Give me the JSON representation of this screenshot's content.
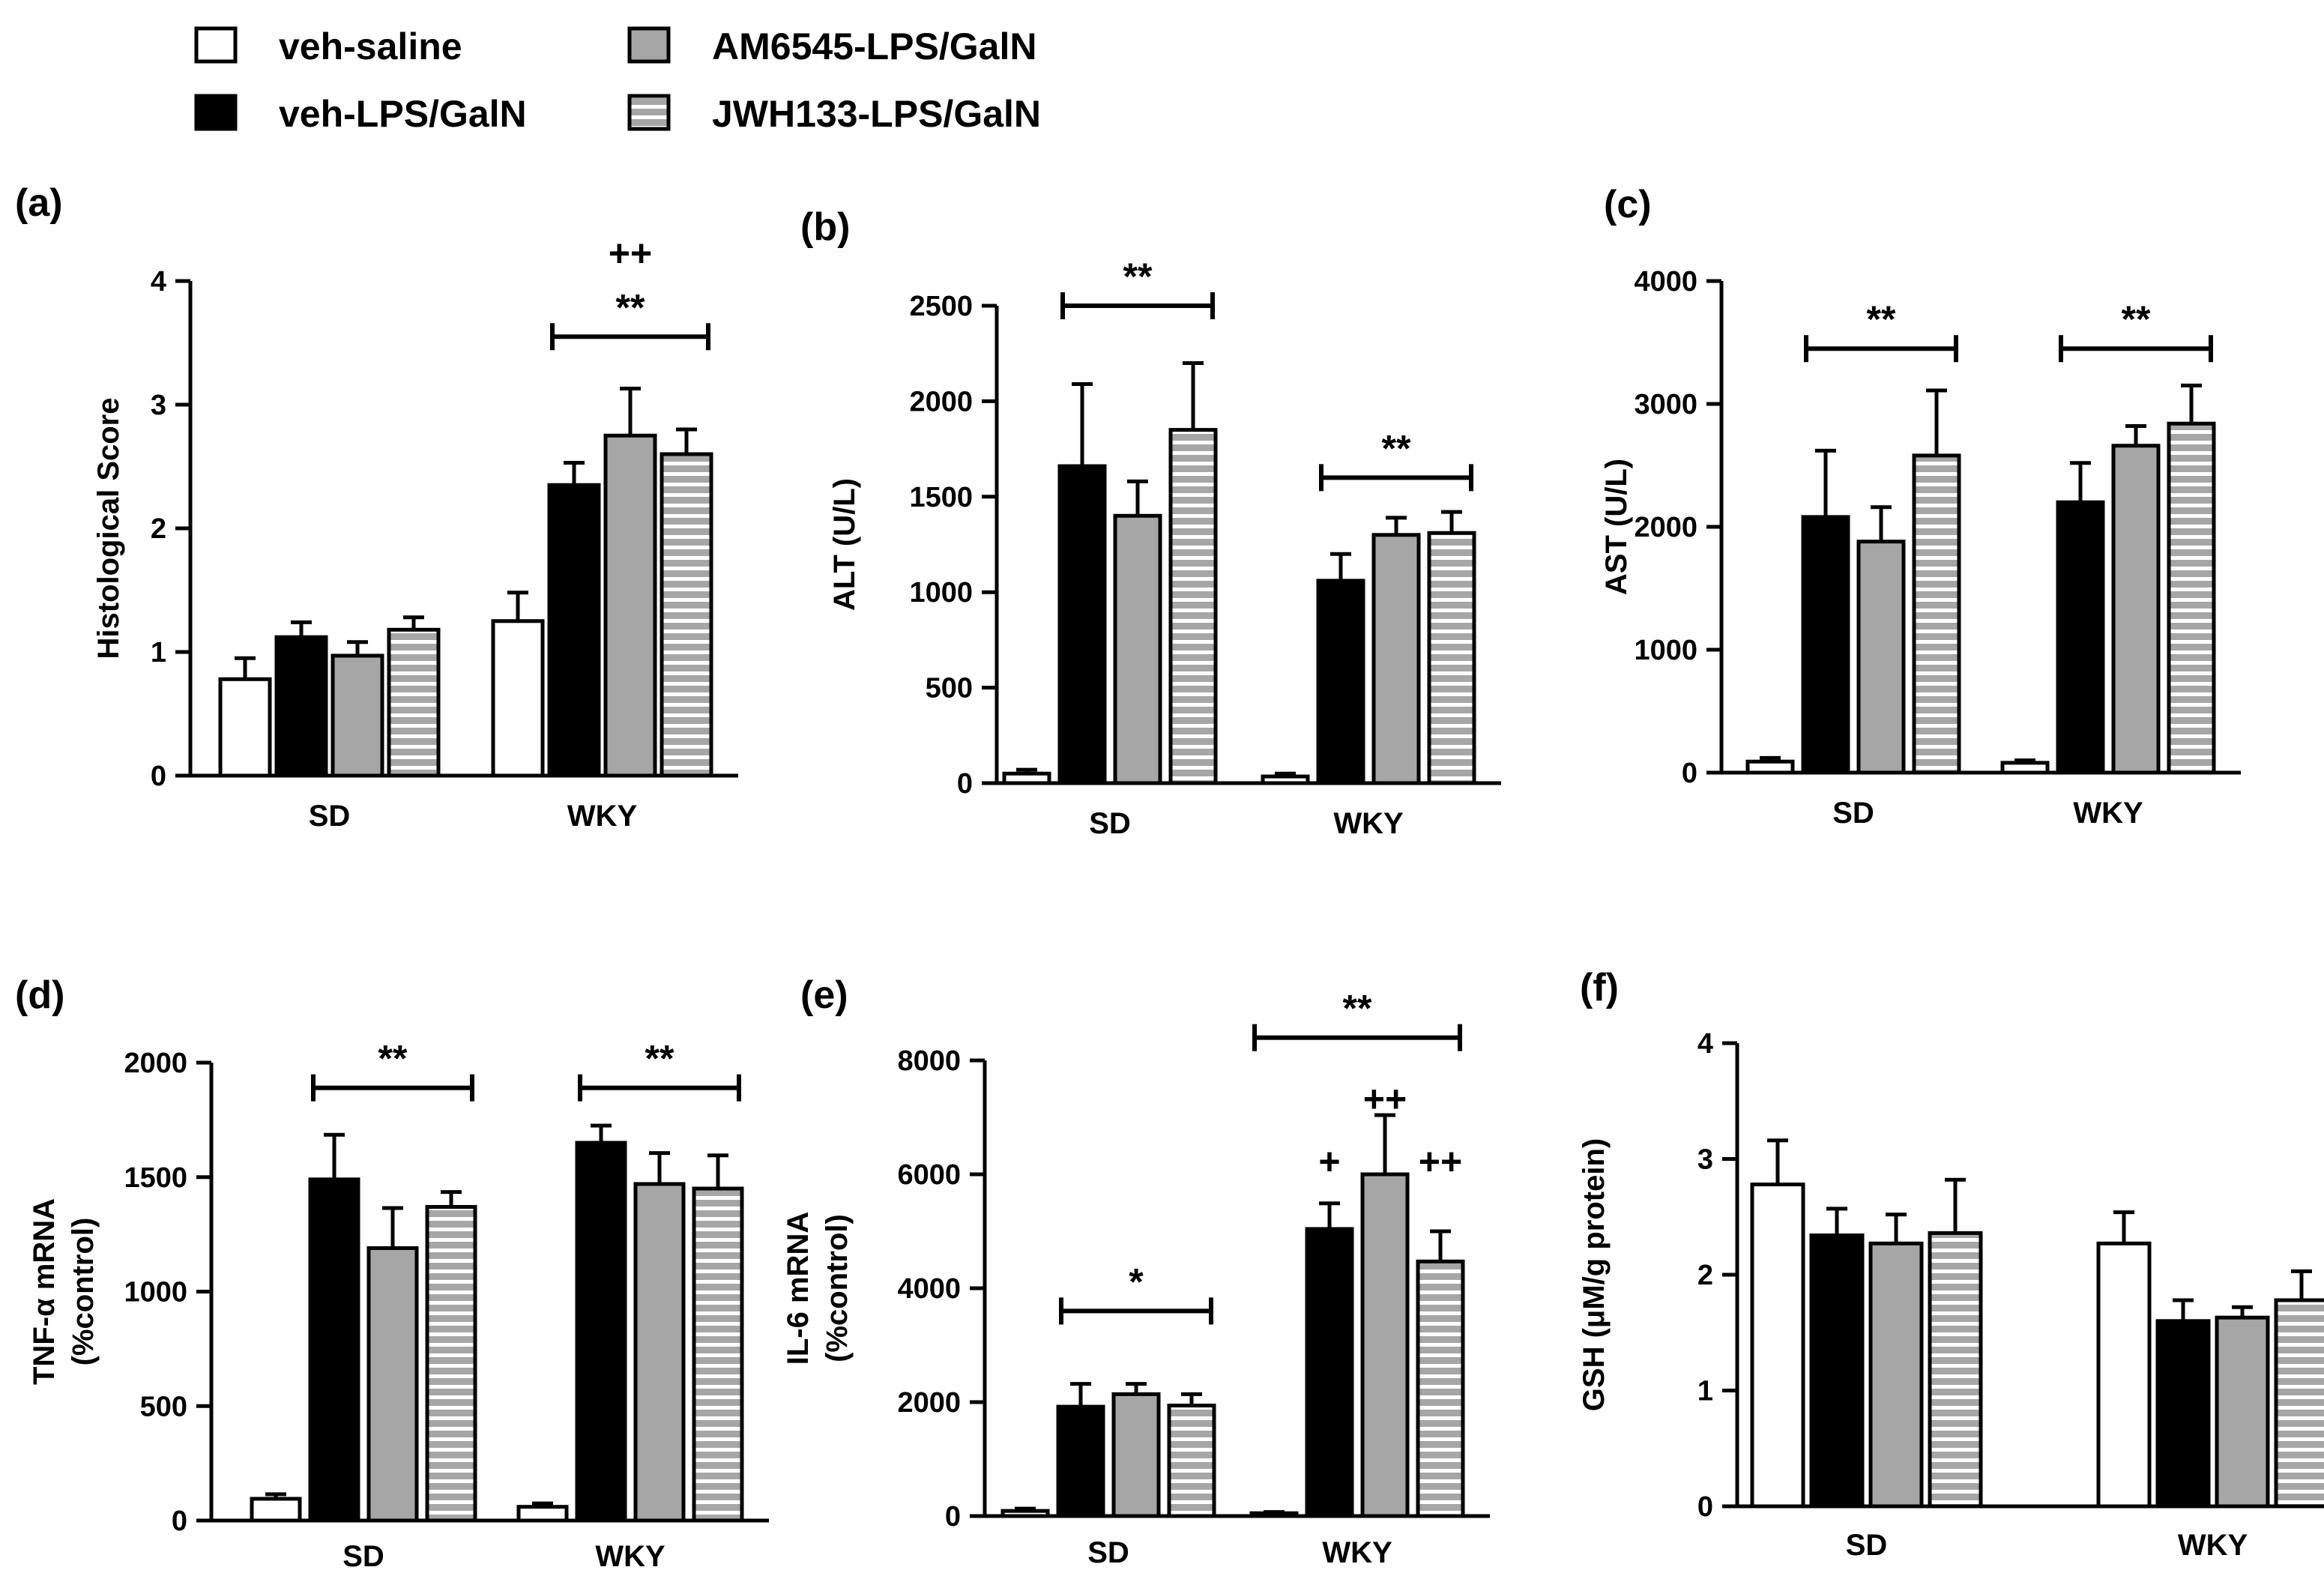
{
  "legend": [
    {
      "name": "veh-saline",
      "style": "white"
    },
    {
      "name": "veh-LPS/GalN",
      "style": "black"
    },
    {
      "name": "AM6545-LPS/GalN",
      "style": "gray"
    },
    {
      "name": "JWH133-LPS/GalN",
      "style": "stripe"
    }
  ],
  "colors": {
    "white": "#ffffff",
    "black": "#000000",
    "gray": "#a6a6a6",
    "stripe_bg": "#a6a6a6",
    "stripe_line": "#ffffff",
    "ink": "#000000"
  },
  "chart_data": [
    {
      "type": "bar",
      "panel_label": "(a)",
      "ylabel": "Histological Score",
      "ylim": [
        0,
        4
      ],
      "yticks": [
        "0",
        "1",
        "2",
        "3",
        "4"
      ],
      "categories": [
        "SD",
        "WKY"
      ],
      "series": [
        {
          "name": "veh-saline",
          "values": [
            0.78,
            1.25
          ],
          "errors": [
            0.17,
            0.23
          ]
        },
        {
          "name": "veh-LPS/GalN",
          "values": [
            1.12,
            2.35
          ],
          "errors": [
            0.12,
            0.18
          ]
        },
        {
          "name": "AM6545-LPS/GalN",
          "values": [
            0.97,
            2.75
          ],
          "errors": [
            0.11,
            0.38
          ]
        },
        {
          "name": "JWH133-LPS/GalN",
          "values": [
            1.18,
            2.6
          ],
          "errors": [
            0.1,
            0.2
          ]
        }
      ],
      "annotations": [
        {
          "group": 1,
          "from": 1,
          "to": 3,
          "label": "**",
          "level": 3.55
        },
        {
          "group": 1,
          "label": "++",
          "level": 4.12,
          "plain": true
        }
      ]
    },
    {
      "type": "bar",
      "panel_label": "(b)",
      "ylabel": "ALT (U/L)",
      "ylim": [
        0,
        2500
      ],
      "yticks": [
        "0",
        "500",
        "1000",
        "1500",
        "2000",
        "2500"
      ],
      "categories": [
        "SD",
        "WKY"
      ],
      "series": [
        {
          "name": "veh-saline",
          "values": [
            50,
            35
          ],
          "errors": [
            20,
            15
          ]
        },
        {
          "name": "veh-LPS/GalN",
          "values": [
            1660,
            1060
          ],
          "errors": [
            430,
            140
          ]
        },
        {
          "name": "AM6545-LPS/GalN",
          "values": [
            1400,
            1300
          ],
          "errors": [
            180,
            90
          ]
        },
        {
          "name": "JWH133-LPS/GalN",
          "values": [
            1850,
            1310
          ],
          "errors": [
            350,
            110
          ]
        }
      ],
      "annotations": [
        {
          "group": 0,
          "from": 1,
          "to": 3,
          "label": "**",
          "level": 2500
        },
        {
          "group": 1,
          "from": 1,
          "to": 3,
          "label": "**",
          "level": 1600
        }
      ]
    },
    {
      "type": "bar",
      "panel_label": "(c)",
      "ylabel": "AST (U/L)",
      "ylim": [
        0,
        4000
      ],
      "yticks": [
        "0",
        "1000",
        "2000",
        "3000",
        "4000"
      ],
      "categories": [
        "SD",
        "WKY"
      ],
      "series": [
        {
          "name": "veh-saline",
          "values": [
            90,
            80
          ],
          "errors": [
            30,
            20
          ]
        },
        {
          "name": "veh-LPS/GalN",
          "values": [
            2080,
            2200
          ],
          "errors": [
            540,
            320
          ]
        },
        {
          "name": "AM6545-LPS/GalN",
          "values": [
            1880,
            2660
          ],
          "errors": [
            280,
            160
          ]
        },
        {
          "name": "JWH133-LPS/GalN",
          "values": [
            2580,
            2840
          ],
          "errors": [
            530,
            310
          ]
        }
      ],
      "annotations": [
        {
          "group": 0,
          "from": 1,
          "to": 3,
          "label": "**",
          "level": 3450
        },
        {
          "group": 1,
          "from": 1,
          "to": 3,
          "label": "**",
          "level": 3450
        }
      ]
    },
    {
      "type": "bar",
      "panel_label": "(d)",
      "ylabel": "TNF-α mRNA",
      "ylabel2": "(%control)",
      "ylim": [
        0,
        2000
      ],
      "yticks": [
        "0",
        "500",
        "1000",
        "1500",
        "2000"
      ],
      "categories": [
        "SD",
        "WKY"
      ],
      "series": [
        {
          "name": "veh-saline",
          "values": [
            95,
            60
          ],
          "errors": [
            20,
            15
          ]
        },
        {
          "name": "veh-LPS/GalN",
          "values": [
            1490,
            1650
          ],
          "errors": [
            195,
            75
          ]
        },
        {
          "name": "AM6545-LPS/GalN",
          "values": [
            1190,
            1470
          ],
          "errors": [
            175,
            135
          ]
        },
        {
          "name": "JWH133-LPS/GalN",
          "values": [
            1370,
            1450
          ],
          "errors": [
            65,
            145
          ]
        }
      ],
      "annotations": [
        {
          "group": 0,
          "from": 1,
          "to": 3,
          "label": "**",
          "level": 1890
        },
        {
          "group": 1,
          "from": 1,
          "to": 3,
          "label": "**",
          "level": 1890
        }
      ]
    },
    {
      "type": "bar",
      "panel_label": "(e)",
      "ylabel": "IL-6 mRNA",
      "ylabel2": "(%control)",
      "ylim": [
        0,
        8000
      ],
      "yticks": [
        "0",
        "2000",
        "4000",
        "6000",
        "8000"
      ],
      "categories": [
        "SD",
        "WKY"
      ],
      "series": [
        {
          "name": "veh-saline",
          "values": [
            90,
            50
          ],
          "errors": [
            40,
            20
          ]
        },
        {
          "name": "veh-LPS/GalN",
          "values": [
            1920,
            5040
          ],
          "errors": [
            400,
            450
          ]
        },
        {
          "name": "AM6545-LPS/GalN",
          "values": [
            2140,
            6000
          ],
          "errors": [
            180,
            1040
          ]
        },
        {
          "name": "JWH133-LPS/GalN",
          "values": [
            1940,
            4470
          ],
          "errors": [
            200,
            530
          ]
        }
      ],
      "annotations": [
        {
          "group": 0,
          "from": 1,
          "to": 3,
          "label": "*",
          "level": 3600
        },
        {
          "group": 1,
          "from": 0,
          "to": 3,
          "label": "**",
          "level": 8400
        },
        {
          "group": 1,
          "bar": 1,
          "label": "+",
          "level": 6000,
          "plain": true
        },
        {
          "group": 1,
          "bar": 2,
          "label": "++",
          "level": 7100,
          "plain": true
        },
        {
          "group": 1,
          "bar": 3,
          "label": "++",
          "level": 6000,
          "plain": true
        }
      ]
    },
    {
      "type": "bar",
      "panel_label": "(f)",
      "ylabel": "GSH (μM/g protein)",
      "ylim": [
        0,
        4
      ],
      "yticks": [
        "0",
        "1",
        "2",
        "3",
        "4"
      ],
      "categories": [
        "SD",
        "WKY"
      ],
      "series": [
        {
          "name": "veh-saline",
          "values": [
            2.78,
            2.27
          ],
          "errors": [
            0.38,
            0.27
          ]
        },
        {
          "name": "veh-LPS/GalN",
          "values": [
            2.34,
            1.6
          ],
          "errors": [
            0.23,
            0.18
          ]
        },
        {
          "name": "AM6545-LPS/GalN",
          "values": [
            2.27,
            1.63
          ],
          "errors": [
            0.25,
            0.09
          ]
        },
        {
          "name": "JWH133-LPS/GalN",
          "values": [
            2.36,
            1.78
          ],
          "errors": [
            0.46,
            0.25
          ]
        }
      ],
      "annotations": []
    }
  ]
}
